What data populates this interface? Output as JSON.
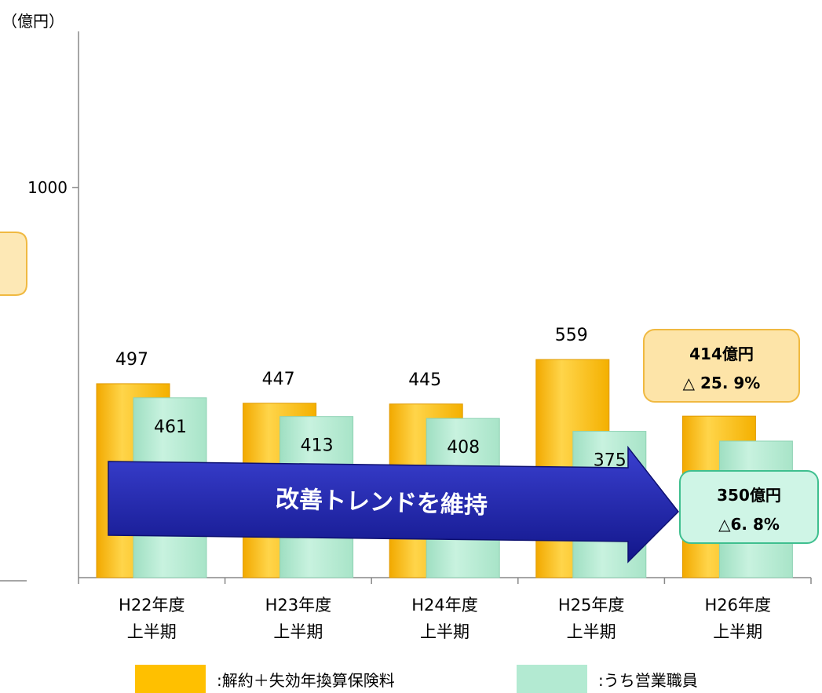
{
  "chart_data": {
    "type": "bar",
    "unit_label": "（億円）",
    "categories": [
      [
        "H22年度",
        "上半期"
      ],
      [
        "H23年度",
        "上半期"
      ],
      [
        "H24年度",
        "上半期"
      ],
      [
        "H25年度",
        "上半期"
      ],
      [
        "H26年度",
        "上半期"
      ]
    ],
    "series": [
      {
        "name": ":解約＋失効年換算保険料",
        "values": [
          497,
          447,
          445,
          559,
          414
        ],
        "color": "#FFC000"
      },
      {
        "name": ":うち営業職員",
        "values": [
          461,
          413,
          408,
          375,
          350
        ],
        "color": "#B3EAD2"
      }
    ],
    "data_labels": {
      "series_0": [
        "497",
        "447",
        "445",
        "559",
        null
      ],
      "series_1": [
        "461",
        "413",
        "408",
        "375",
        null
      ]
    },
    "yticks": [
      {
        "value": 1000,
        "label": "1000"
      }
    ],
    "ylim": [
      0,
      1400
    ],
    "grid": false,
    "legend_position": "bottom",
    "annotations": {
      "callout_total": {
        "line1": "414億円",
        "line2": "△ 25. 9%",
        "fill": "#FDE4A8",
        "border": "#F0B941"
      },
      "callout_sales": {
        "line1": "350億円",
        "line2": "△6. 8%",
        "fill": "#CFF5E6",
        "border": "#3FBF8F"
      },
      "trend_arrow": {
        "text": "改善トレンドを維持",
        "color": "#1A1FA8"
      }
    }
  }
}
